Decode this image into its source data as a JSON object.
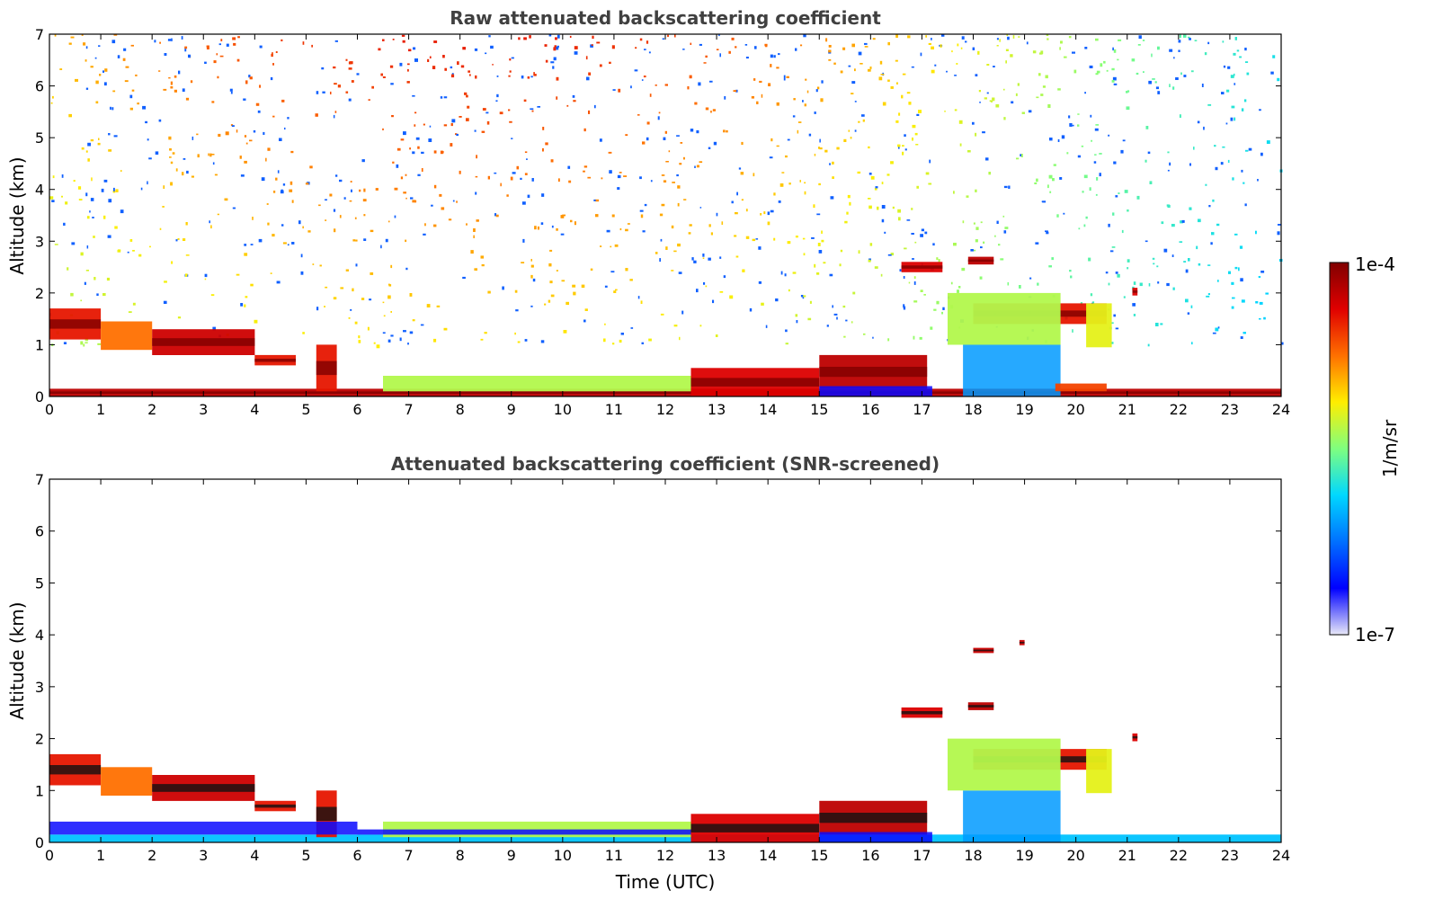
{
  "colors": {
    "colormap": [
      "#e8e8f8",
      "#0000ff",
      "#0070ff",
      "#00d8ff",
      "#7fff7f",
      "#ffee00",
      "#ff7000",
      "#e00000",
      "#800000"
    ],
    "noise_color": "#1060ff",
    "axis_color": "#000000",
    "title_color": "#404040"
  },
  "colorbar": {
    "max_label": "1e-4",
    "min_label": "1e-7",
    "unit_label": "1/m/sr",
    "scale": "log"
  },
  "chart_data": [
    {
      "type": "heatmap",
      "title": "Raw attenuated backscattering coefficient",
      "xlabel": "",
      "ylabel": "Altitude (km)",
      "xlim": [
        0,
        24
      ],
      "ylim": [
        0,
        7
      ],
      "xticks": [
        "0",
        "1",
        "2",
        "3",
        "4",
        "5",
        "6",
        "7",
        "8",
        "9",
        "10",
        "11",
        "12",
        "13",
        "14",
        "15",
        "16",
        "17",
        "18",
        "19",
        "20",
        "21",
        "22",
        "23",
        "24"
      ],
      "yticks": [
        "0",
        "1",
        "2",
        "3",
        "4",
        "5",
        "6",
        "7"
      ],
      "screened": false,
      "features": [
        {
          "kind": "surface_layer",
          "x": [
            0,
            24
          ],
          "y": [
            0,
            0.15
          ],
          "value": 0.92
        },
        {
          "kind": "boundary_layer",
          "x": [
            0,
            1.0
          ],
          "y": [
            1.1,
            1.7
          ],
          "value": 0.85
        },
        {
          "kind": "boundary_layer",
          "x": [
            1.0,
            2.0
          ],
          "y": [
            0.9,
            1.45
          ],
          "value": 0.75
        },
        {
          "kind": "boundary_layer",
          "x": [
            2.0,
            4.0
          ],
          "y": [
            0.8,
            1.3
          ],
          "value": 0.9
        },
        {
          "kind": "boundary_layer",
          "x": [
            4.0,
            4.8
          ],
          "y": [
            0.6,
            0.8
          ],
          "value": 0.85
        },
        {
          "kind": "boundary_layer",
          "x": [
            5.2,
            5.6
          ],
          "y": [
            0.1,
            1.0
          ],
          "value": 0.85
        },
        {
          "kind": "boundary_layer",
          "x": [
            6.5,
            12.5
          ],
          "y": [
            0.1,
            0.4
          ],
          "value": 0.55
        },
        {
          "kind": "boundary_layer",
          "x": [
            12.5,
            15.0
          ],
          "y": [
            0.0,
            0.55
          ],
          "value": 0.88
        },
        {
          "kind": "boundary_layer",
          "x": [
            15.0,
            17.1
          ],
          "y": [
            0.15,
            0.8
          ],
          "value": 0.92
        },
        {
          "kind": "aerosol",
          "x": [
            15.0,
            17.2
          ],
          "y": [
            0.0,
            0.2
          ],
          "value": 0.12
        },
        {
          "kind": "aerosol",
          "x": [
            17.8,
            19.7
          ],
          "y": [
            0.0,
            1.0
          ],
          "value": 0.3
        },
        {
          "kind": "cloud",
          "x": [
            16.6,
            17.4
          ],
          "y": [
            2.4,
            2.6
          ],
          "value": 0.88
        },
        {
          "kind": "cloud",
          "x": [
            17.9,
            18.4
          ],
          "y": [
            2.55,
            2.7
          ],
          "value": 0.92
        },
        {
          "kind": "cloud",
          "x": [
            18.0,
            20.6
          ],
          "y": [
            1.4,
            1.8
          ],
          "value": 0.85
        },
        {
          "kind": "cloud",
          "x": [
            17.5,
            19.7
          ],
          "y": [
            1.0,
            2.0
          ],
          "value": 0.55
        },
        {
          "kind": "cloud",
          "x": [
            20.2,
            20.7
          ],
          "y": [
            0.95,
            1.8
          ],
          "value": 0.6
        },
        {
          "kind": "cloud",
          "x": [
            21.1,
            21.2
          ],
          "y": [
            1.95,
            2.1
          ],
          "value": 0.88
        },
        {
          "kind": "surface_layer",
          "x": [
            19.6,
            20.6
          ],
          "y": [
            0.1,
            0.25
          ],
          "value": 0.8
        }
      ],
      "noise_region": {
        "y": [
          1.0,
          7.0
        ],
        "description": "background noise above boundary layer"
      }
    },
    {
      "type": "heatmap",
      "title": "Attenuated backscattering coefficient (SNR-screened)",
      "xlabel": "Time (UTC)",
      "ylabel": "Altitude (km)",
      "xlim": [
        0,
        24
      ],
      "ylim": [
        0,
        7
      ],
      "xticks": [
        "0",
        "1",
        "2",
        "3",
        "4",
        "5",
        "6",
        "7",
        "8",
        "9",
        "10",
        "11",
        "12",
        "13",
        "14",
        "15",
        "16",
        "17",
        "18",
        "19",
        "20",
        "21",
        "22",
        "23",
        "24"
      ],
      "yticks": [
        "0",
        "1",
        "2",
        "3",
        "4",
        "5",
        "6",
        "7"
      ],
      "screened": true,
      "features": [
        {
          "kind": "surface_layer",
          "x": [
            0,
            24
          ],
          "y": [
            0,
            0.15
          ],
          "value": 0.35
        },
        {
          "kind": "boundary_layer",
          "x": [
            0,
            1.0
          ],
          "y": [
            1.1,
            1.7
          ],
          "value": 0.85
        },
        {
          "kind": "boundary_layer",
          "x": [
            1.0,
            2.0
          ],
          "y": [
            0.9,
            1.45
          ],
          "value": 0.75
        },
        {
          "kind": "boundary_layer",
          "x": [
            2.0,
            4.0
          ],
          "y": [
            0.8,
            1.3
          ],
          "value": 0.9
        },
        {
          "kind": "boundary_layer",
          "x": [
            4.0,
            4.8
          ],
          "y": [
            0.6,
            0.8
          ],
          "value": 0.85
        },
        {
          "kind": "boundary_layer",
          "x": [
            5.2,
            5.6
          ],
          "y": [
            0.1,
            1.0
          ],
          "value": 0.85
        },
        {
          "kind": "boundary_layer",
          "x": [
            6.5,
            12.5
          ],
          "y": [
            0.1,
            0.4
          ],
          "value": 0.55
        },
        {
          "kind": "boundary_layer",
          "x": [
            12.5,
            15.0
          ],
          "y": [
            0.0,
            0.55
          ],
          "value": 0.88
        },
        {
          "kind": "boundary_layer",
          "x": [
            15.0,
            17.1
          ],
          "y": [
            0.15,
            0.8
          ],
          "value": 0.92
        },
        {
          "kind": "aerosol",
          "x": [
            15.0,
            17.2
          ],
          "y": [
            0.0,
            0.2
          ],
          "value": 0.12
        },
        {
          "kind": "aerosol",
          "x": [
            17.8,
            19.7
          ],
          "y": [
            0.0,
            1.0
          ],
          "value": 0.3
        },
        {
          "kind": "cloud",
          "x": [
            16.6,
            17.4
          ],
          "y": [
            2.4,
            2.6
          ],
          "value": 0.88
        },
        {
          "kind": "cloud",
          "x": [
            17.9,
            18.4
          ],
          "y": [
            2.55,
            2.7
          ],
          "value": 0.92
        },
        {
          "kind": "cloud",
          "x": [
            18.0,
            20.6
          ],
          "y": [
            1.4,
            1.8
          ],
          "value": 0.85
        },
        {
          "kind": "cloud",
          "x": [
            17.5,
            19.7
          ],
          "y": [
            1.0,
            2.0
          ],
          "value": 0.55
        },
        {
          "kind": "cloud",
          "x": [
            20.2,
            20.7
          ],
          "y": [
            0.95,
            1.8
          ],
          "value": 0.6
        },
        {
          "kind": "cloud",
          "x": [
            21.1,
            21.2
          ],
          "y": [
            1.95,
            2.1
          ],
          "value": 0.88
        },
        {
          "kind": "cloud",
          "x": [
            18.0,
            18.4
          ],
          "y": [
            3.65,
            3.75
          ],
          "value": 0.9
        },
        {
          "kind": "cloud",
          "x": [
            18.9,
            19.0
          ],
          "y": [
            3.8,
            3.9
          ],
          "value": 0.9
        },
        {
          "kind": "aerosol",
          "x": [
            0,
            6.0
          ],
          "y": [
            0.15,
            0.4
          ],
          "value": 0.12
        },
        {
          "kind": "aerosol",
          "x": [
            6.0,
            12.5
          ],
          "y": [
            0.15,
            0.25
          ],
          "value": 0.12
        }
      ],
      "noise_region": null
    }
  ]
}
